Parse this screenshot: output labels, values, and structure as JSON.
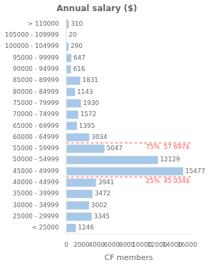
{
  "chart_data": {
    "type": "bar",
    "orientation": "horizontal",
    "title": "Annual salary ($)",
    "xlabel": "CF members",
    "categories": [
      "> 110000",
      "105000 - 109999",
      "100000 - 104999",
      "95000 - 99999",
      "90000 - 94999",
      "85000 - 89999",
      "80000 - 84999",
      "75000 - 79999",
      "70000 - 74999",
      "65000 - 69999",
      "60000 - 64999",
      "55000 - 59999",
      "50000 - 54999",
      "45000 - 49999",
      "40000 - 44999",
      "35000 - 39999",
      "30000 - 34999",
      "25000 - 29999",
      "< 25000"
    ],
    "values": [
      310,
      20,
      290,
      647,
      616,
      1831,
      1143,
      1930,
      1572,
      1395,
      3034,
      5047,
      12129,
      15477,
      3941,
      3472,
      3002,
      3345,
      1246
    ],
    "color": "#a8c8e8",
    "xlim": [
      0,
      16500
    ],
    "xticks": [
      0,
      2000,
      4000,
      6000,
      8000,
      10000,
      12000,
      14000,
      16000
    ],
    "grid": false,
    "legend": false,
    "data_labels": true,
    "annotations": [
      {
        "text": "75%  57 697$",
        "between": [
          "60000 - 64999",
          "55000 - 59999"
        ],
        "line_style": "dashed",
        "color": "#ff5555"
      },
      {
        "text": "25%  45 034$",
        "between": [
          "45000 - 49999",
          "40000 - 44999"
        ],
        "line_style": "dashed",
        "color": "#ff5555"
      }
    ]
  }
}
